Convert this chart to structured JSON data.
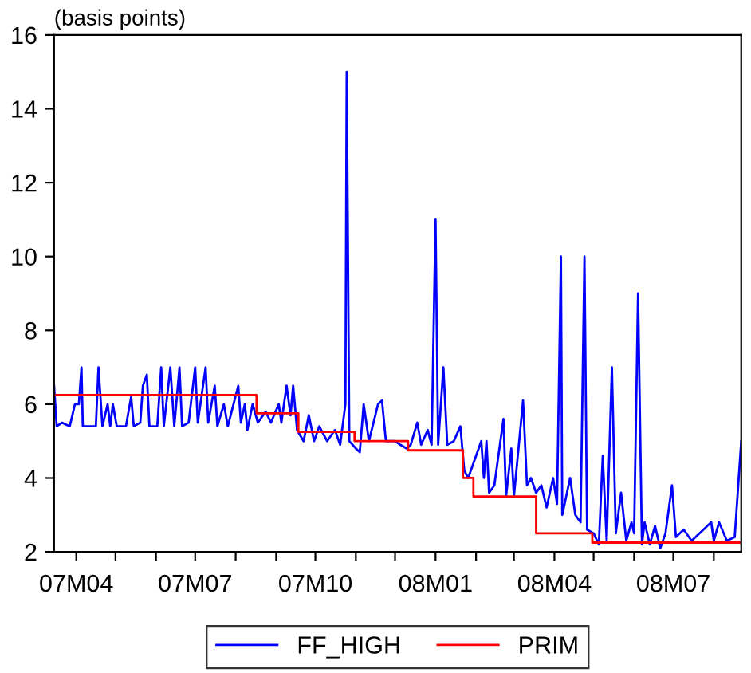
{
  "chart_data": {
    "type": "line",
    "ylabel": "(basis points)",
    "xlim": [
      "2007-03-15",
      "2008-08-22"
    ],
    "ylim": [
      2,
      16
    ],
    "yticks": [
      2,
      4,
      6,
      8,
      10,
      12,
      14,
      16
    ],
    "xticks": [
      {
        "value": "2007-04-01",
        "label": "07M04"
      },
      {
        "value": "2007-05-01",
        "label": null
      },
      {
        "value": "2007-06-01",
        "label": null
      },
      {
        "value": "2007-07-01",
        "label": "07M07"
      },
      {
        "value": "2007-08-01",
        "label": null
      },
      {
        "value": "2007-09-01",
        "label": null
      },
      {
        "value": "2007-10-01",
        "label": "07M10"
      },
      {
        "value": "2007-11-01",
        "label": null
      },
      {
        "value": "2007-12-01",
        "label": null
      },
      {
        "value": "2008-01-01",
        "label": "08M01"
      },
      {
        "value": "2008-02-01",
        "label": null
      },
      {
        "value": "2008-03-01",
        "label": null
      },
      {
        "value": "2008-04-01",
        "label": "08M04"
      },
      {
        "value": "2008-05-01",
        "label": null
      },
      {
        "value": "2008-06-01",
        "label": null
      },
      {
        "value": "2008-07-01",
        "label": "08M07"
      },
      {
        "value": "2008-08-01",
        "label": null
      }
    ],
    "grid": false,
    "legend": "bottom",
    "series": [
      {
        "name": "FF_HIGH",
        "color": "#0000ff",
        "x": [
          "2007-03-15",
          "2007-03-17",
          "2007-03-21",
          "2007-03-27",
          "2007-03-31",
          "2007-04-03",
          "2007-04-05",
          "2007-04-06",
          "2007-04-16",
          "2007-04-18",
          "2007-04-21",
          "2007-04-25",
          "2007-04-27",
          "2007-04-29",
          "2007-05-02",
          "2007-05-09",
          "2007-05-13",
          "2007-05-15",
          "2007-05-20",
          "2007-05-22",
          "2007-05-25",
          "2007-05-27",
          "2007-06-02",
          "2007-06-05",
          "2007-06-07",
          "2007-06-12",
          "2007-06-15",
          "2007-06-19",
          "2007-06-21",
          "2007-06-26",
          "2007-07-01",
          "2007-07-03",
          "2007-07-09",
          "2007-07-11",
          "2007-07-16",
          "2007-07-18",
          "2007-07-23",
          "2007-07-26",
          "2007-08-03",
          "2007-08-05",
          "2007-08-08",
          "2007-08-10",
          "2007-08-14",
          "2007-08-18",
          "2007-08-24",
          "2007-08-28",
          "2007-09-03",
          "2007-09-05",
          "2007-09-09",
          "2007-09-12",
          "2007-09-14",
          "2007-09-17",
          "2007-09-22",
          "2007-09-26",
          "2007-09-30",
          "2007-10-04",
          "2007-10-10",
          "2007-10-16",
          "2007-10-20",
          "2007-10-24",
          "2007-10-25",
          "2007-10-27",
          "2007-11-01",
          "2007-11-04",
          "2007-11-07",
          "2007-11-11",
          "2007-11-18",
          "2007-11-21",
          "2007-11-24",
          "2007-12-01",
          "2007-12-05",
          "2007-12-10",
          "2007-12-13",
          "2007-12-18",
          "2007-12-21",
          "2007-12-26",
          "2007-12-29",
          "2008-01-01",
          "2008-01-03",
          "2008-01-07",
          "2008-01-10",
          "2008-01-15",
          "2008-01-20",
          "2008-01-23",
          "2008-01-26",
          "2008-01-31",
          "2008-02-05",
          "2008-02-07",
          "2008-02-09",
          "2008-02-11",
          "2008-02-15",
          "2008-02-22",
          "2008-02-24",
          "2008-02-28",
          "2008-03-01",
          "2008-03-08",
          "2008-03-11",
          "2008-03-14",
          "2008-03-18",
          "2008-03-22",
          "2008-03-26",
          "2008-03-31",
          "2008-04-03",
          "2008-04-06",
          "2008-04-07",
          "2008-04-13",
          "2008-04-17",
          "2008-04-21",
          "2008-04-24",
          "2008-04-26",
          "2008-05-01",
          "2008-05-05",
          "2008-05-08",
          "2008-05-11",
          "2008-05-15",
          "2008-05-18",
          "2008-05-22",
          "2008-05-26",
          "2008-05-30",
          "2008-06-01",
          "2008-06-04",
          "2008-06-07",
          "2008-06-09",
          "2008-06-13",
          "2008-06-17",
          "2008-06-21",
          "2008-06-25",
          "2008-06-30",
          "2008-07-03",
          "2008-07-09",
          "2008-07-15",
          "2008-07-21",
          "2008-07-30",
          "2008-08-01",
          "2008-08-05",
          "2008-08-11",
          "2008-08-17",
          "2008-08-22"
        ],
        "values": [
          6.5,
          5.4,
          5.5,
          5.4,
          6.0,
          6.0,
          7.0,
          5.4,
          5.4,
          7.0,
          5.4,
          6.0,
          5.4,
          6.0,
          5.4,
          5.4,
          6.2,
          5.4,
          5.5,
          6.5,
          6.8,
          5.4,
          5.4,
          7.0,
          5.4,
          7.0,
          5.4,
          7.0,
          5.4,
          5.5,
          7.0,
          5.5,
          7.0,
          5.5,
          6.5,
          5.4,
          6.0,
          5.4,
          6.5,
          5.5,
          6.0,
          5.3,
          6.0,
          5.5,
          5.8,
          5.5,
          6.0,
          5.5,
          6.5,
          5.7,
          6.5,
          5.3,
          5.0,
          5.7,
          5.0,
          5.4,
          5.0,
          5.3,
          4.9,
          6.0,
          15.0,
          5.0,
          4.8,
          4.7,
          6.0,
          5.0,
          6.0,
          6.1,
          5.0,
          5.0,
          4.9,
          4.8,
          4.9,
          5.5,
          4.9,
          5.3,
          4.9,
          11.0,
          4.9,
          7.0,
          4.9,
          5.0,
          5.4,
          4.2,
          4.0,
          4.5,
          5.0,
          4.0,
          5.0,
          3.6,
          3.8,
          5.6,
          3.5,
          4.8,
          3.5,
          6.1,
          3.8,
          4.0,
          3.6,
          3.8,
          3.2,
          4.0,
          3.3,
          10.0,
          3.0,
          4.0,
          3.0,
          2.8,
          10.0,
          2.6,
          2.5,
          2.2,
          4.6,
          2.3,
          7.0,
          2.5,
          3.6,
          2.3,
          2.8,
          2.5,
          9.0,
          2.2,
          2.8,
          2.2,
          2.7,
          2.1,
          2.5,
          3.8,
          2.4,
          2.6,
          2.3,
          2.5,
          2.8,
          2.3,
          2.8,
          2.3,
          2.4,
          5.0
        ]
      },
      {
        "name": "PRIM",
        "color": "#ff0000",
        "type": "step",
        "x": [
          "2007-03-15",
          "2007-08-17",
          "2007-09-18",
          "2007-10-31",
          "2007-12-11",
          "2008-01-22",
          "2008-01-30",
          "2008-03-18",
          "2008-04-30",
          "2008-08-22"
        ],
        "values": [
          6.25,
          5.75,
          5.25,
          5.0,
          4.75,
          4.0,
          3.5,
          2.5,
          2.25,
          2.25
        ]
      }
    ]
  }
}
